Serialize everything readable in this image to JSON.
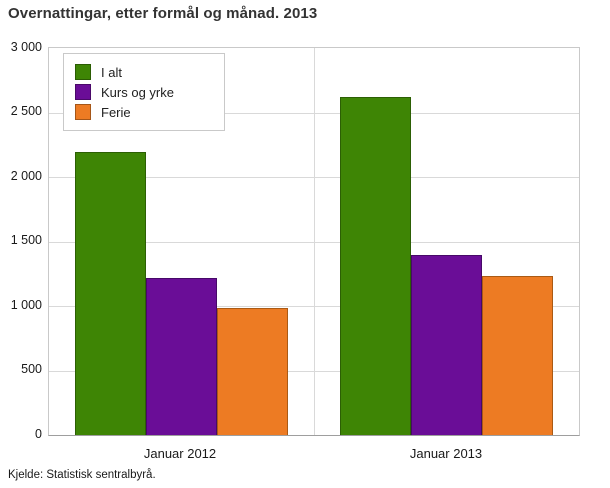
{
  "title": "Overnattingar, etter formål og månad. 2013",
  "source": "Kjelde: Statistisk sentralbyrå.",
  "chart_data": {
    "type": "bar",
    "title": "Overnattingar, etter formål og månad. 2013",
    "categories": [
      "Januar 2012",
      "Januar 2013"
    ],
    "series": [
      {
        "name": "I alt",
        "color": "#3e8505",
        "border_color": "#2c5f04",
        "values": [
          2190,
          2620
        ]
      },
      {
        "name": "Kurs og yrke",
        "color": "#6a0d97",
        "border_color": "#470968",
        "values": [
          1215,
          1395
        ]
      },
      {
        "name": "Ferie",
        "color": "#ed7b23",
        "border_color": "#aa5a14",
        "values": [
          985,
          1230
        ]
      }
    ],
    "ylim": [
      0,
      3000
    ],
    "ytick_step": 500,
    "ytick_labels": [
      "3 000",
      "2 500",
      "2 000",
      "1 500",
      "1 000",
      "500",
      "0"
    ],
    "grid": true,
    "legend_position": "top-left",
    "xlabel": "",
    "ylabel": "",
    "source": "Kjelde: Statistisk sentralbyrå."
  }
}
